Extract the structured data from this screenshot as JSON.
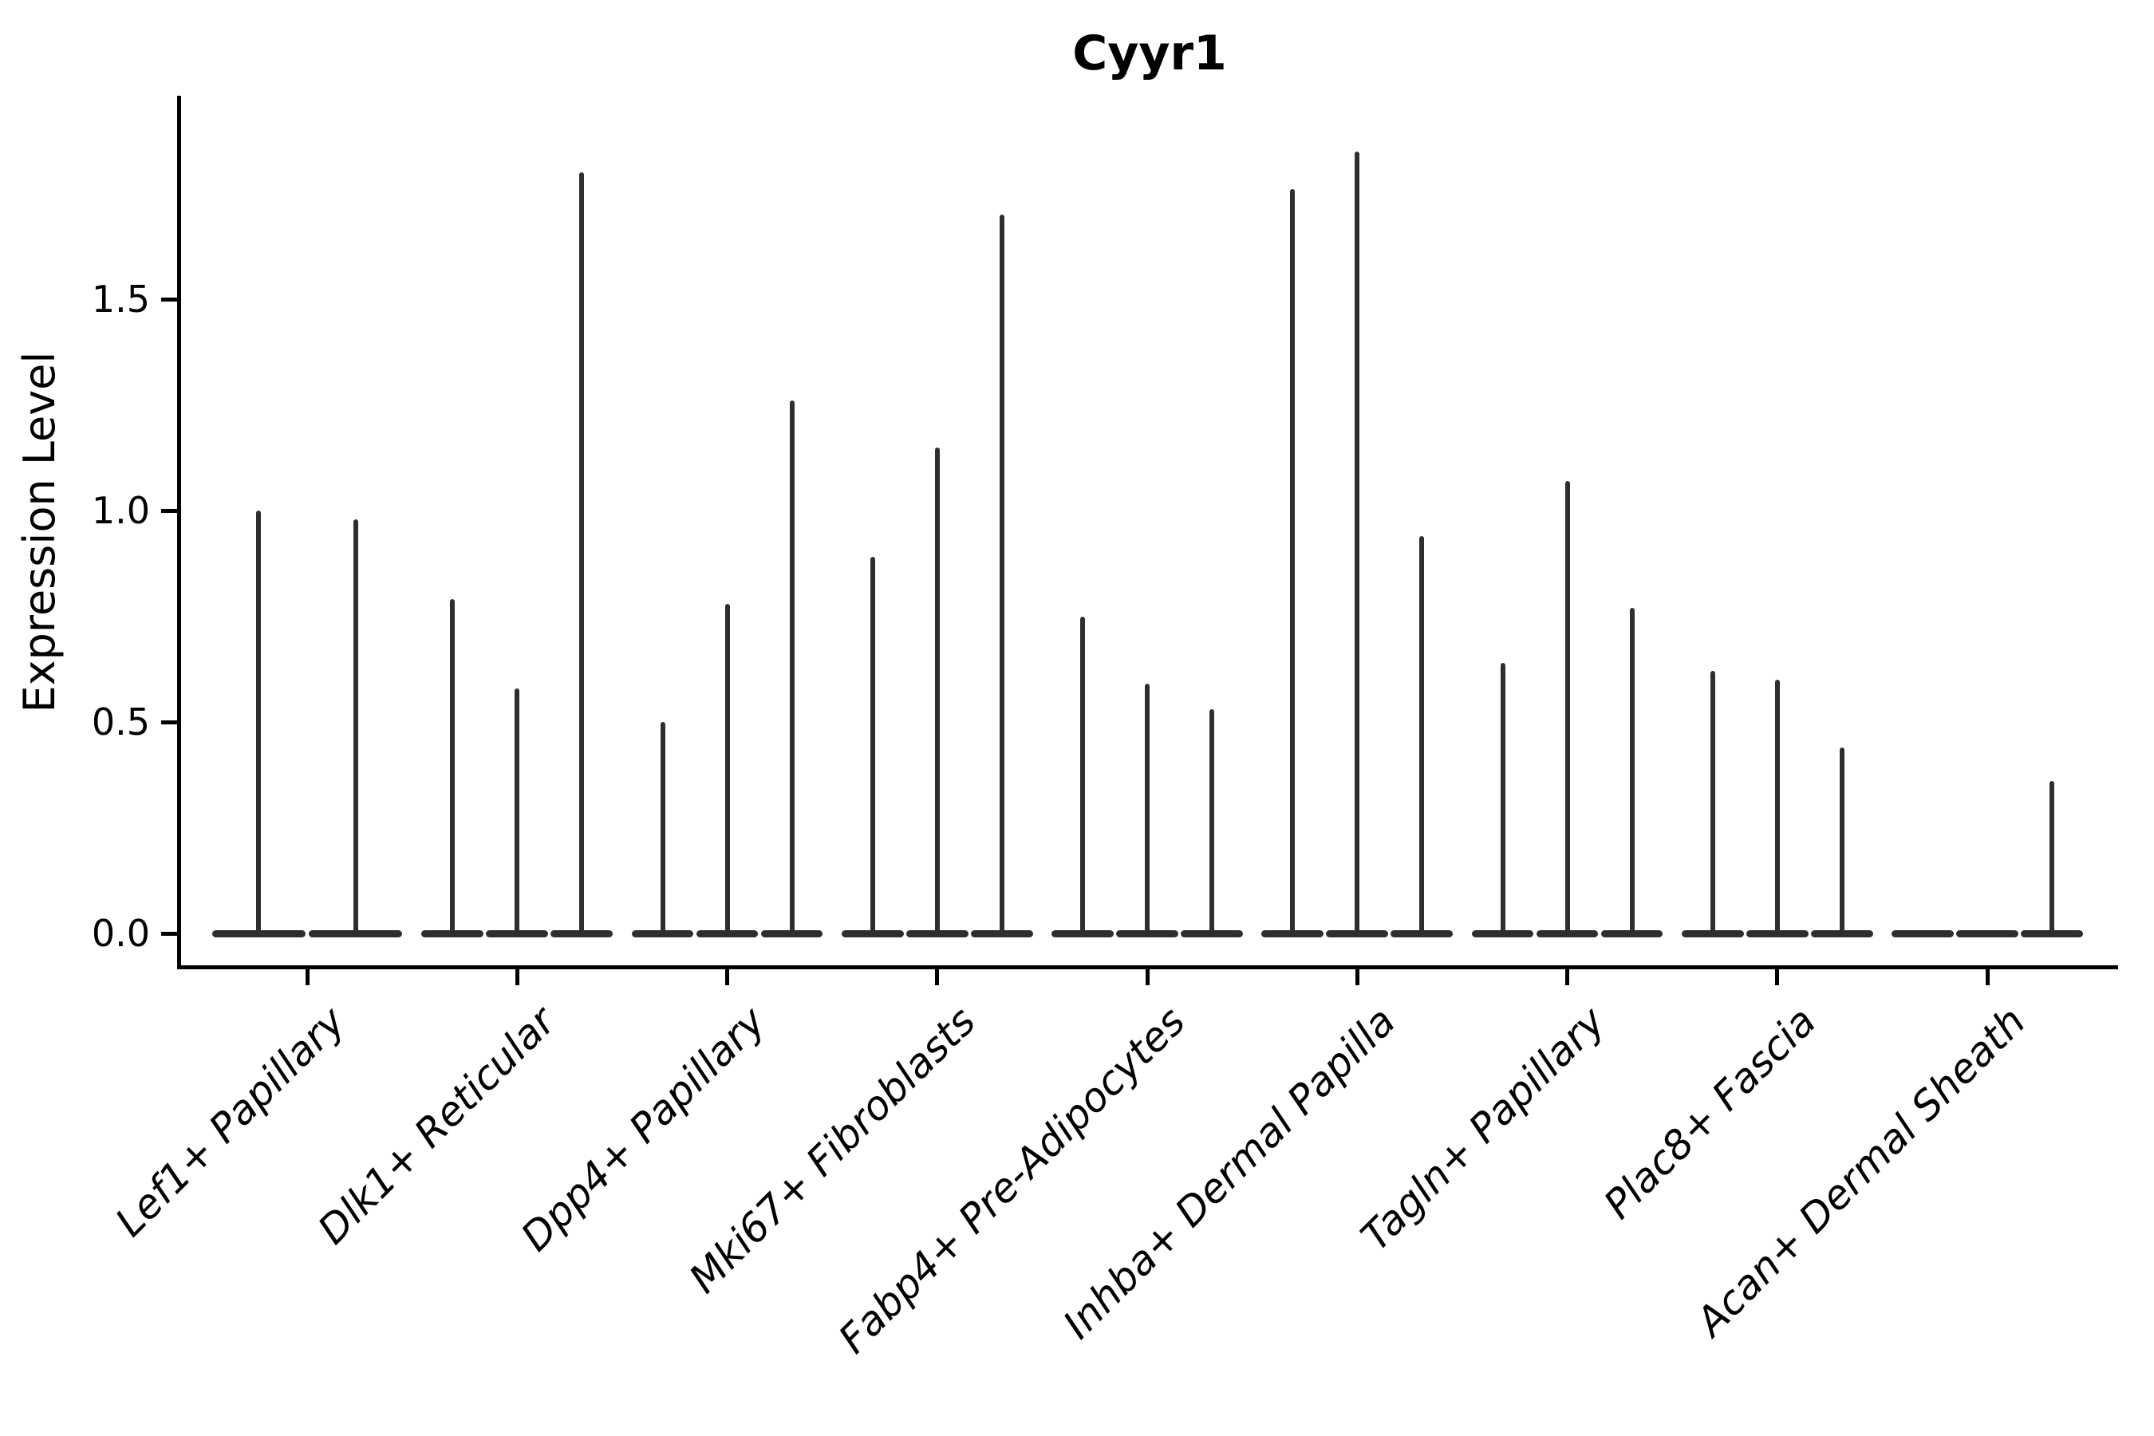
{
  "chart_data": {
    "type": "violin",
    "title": "Cyyr1",
    "ylabel": "Expression Level",
    "xlabel": "",
    "grid": false,
    "legend": null,
    "background_color": "#ffffff",
    "violin_color": "#2e2e2e",
    "axis_color": "#000000",
    "ylim": [
      -0.085,
      1.98
    ],
    "y_axis": {
      "ticks": [
        {
          "label": "0.0",
          "value": 0.0
        },
        {
          "label": "0.5",
          "value": 0.5
        },
        {
          "label": "1.0",
          "value": 1.0
        },
        {
          "label": "1.5",
          "value": 1.5
        }
      ]
    },
    "categories": [
      "Lef1+ Papillary",
      "Dlk1+ Reticular",
      "Dpp4+ Papillary",
      "Mki67+ Fibroblasts",
      "Fabp4+ Pre-Adipocytes",
      "Inhba+ Dermal Papilla",
      "Tagln+ Papillary",
      "Plac8+ Fascia",
      "Acan+ Dermal Sheath"
    ],
    "groups": [
      {
        "label": "Lef1+ Papillary",
        "violin_peaks": [
          1.0,
          0.98
        ]
      },
      {
        "label": "Dlk1+ Reticular",
        "violin_peaks": [
          0.79,
          0.58,
          1.8
        ]
      },
      {
        "label": "Dpp4+ Papillary",
        "violin_peaks": [
          0.5,
          0.78,
          1.26
        ]
      },
      {
        "label": "Mki67+ Fibroblasts",
        "violin_peaks": [
          0.89,
          1.15,
          1.7
        ]
      },
      {
        "label": "Fabp4+ Pre-Adipocytes",
        "violin_peaks": [
          0.75,
          0.59,
          0.53
        ]
      },
      {
        "label": "Inhba+ Dermal Papilla",
        "violin_peaks": [
          1.76,
          1.85,
          0.94
        ]
      },
      {
        "label": "Tagln+ Papillary",
        "violin_peaks": [
          0.64,
          1.07,
          0.77
        ]
      },
      {
        "label": "Plac8+ Fascia",
        "violin_peaks": [
          0.62,
          0.6,
          0.44
        ]
      },
      {
        "label": "Acan+ Dermal Sheath",
        "violin_peaks": [
          0.0,
          0.0,
          0.36
        ]
      }
    ],
    "note": "Each category shows 2-3 very narrow violins; bodies are flat at 0 with a thin spike rising to the peak expression value listed."
  }
}
